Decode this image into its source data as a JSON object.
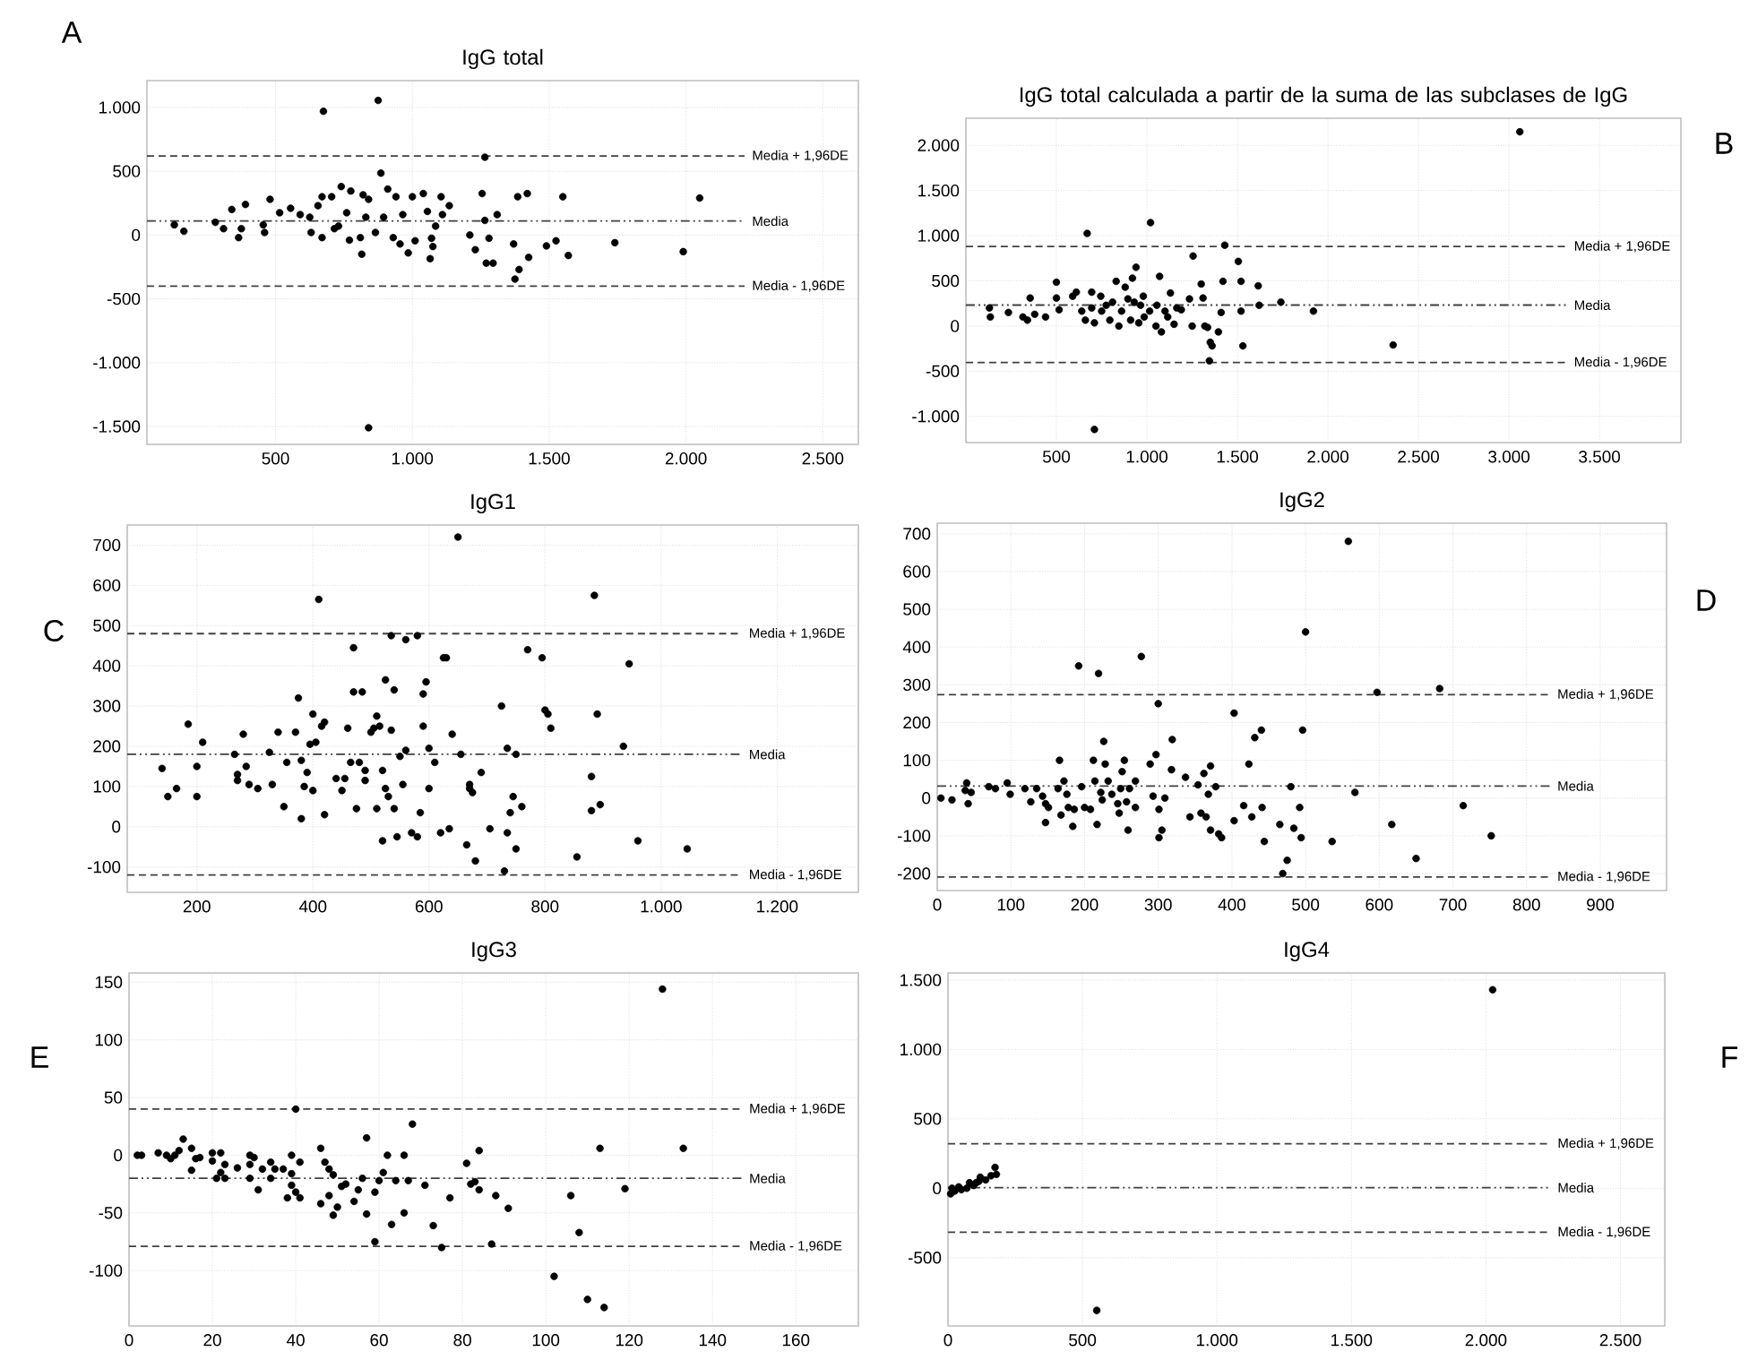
{
  "chart_data": [
    {
      "type": "scatter",
      "title": "IgG total",
      "annotations": [
        "A"
      ],
      "color": "#000000",
      "marker": "circle",
      "grid": true,
      "xlim": [
        30,
        2630
      ],
      "ylim": [
        -1640,
        1210
      ],
      "xticks": [
        500,
        {
          "value": 1000,
          "label": "1.000"
        },
        {
          "value": 1500,
          "label": "1.500"
        },
        {
          "value": 2000,
          "label": "2.000"
        },
        {
          "value": 2500,
          "label": "2.500"
        }
      ],
      "yticks": [
        {
          "value": -1500,
          "label": "-1.500"
        },
        {
          "value": -1000,
          "label": "-1.000"
        },
        -500,
        0,
        500,
        {
          "value": 1000,
          "label": "1.000"
        }
      ],
      "ref_lines": [
        {
          "axis": "y",
          "value": 620,
          "label": "Media + 1,96DE",
          "line_style": "dashed"
        },
        {
          "axis": "y",
          "value": 110,
          "label": "Media",
          "line_style": "dashdot"
        },
        {
          "axis": "y",
          "value": -400,
          "label": "Media - 1,96DE",
          "line_style": "dashed"
        }
      ],
      "x": [
        130,
        165,
        280,
        310,
        340,
        365,
        375,
        390,
        455,
        460,
        480,
        515,
        555,
        590,
        625,
        630,
        655,
        670,
        675,
        670,
        705,
        715,
        730,
        740,
        760,
        770,
        775,
        810,
        820,
        830,
        840,
        865,
        875,
        885,
        895,
        910,
        930,
        940,
        955,
        965,
        985,
        1000,
        1010,
        1040,
        1055,
        1065,
        1070,
        1075,
        1085,
        1105,
        1110,
        1135,
        1210,
        1230,
        1255,
        1265,
        1270,
        1280,
        1295,
        1310,
        1370,
        1375,
        1385,
        1390,
        1420,
        1425,
        1490,
        1525,
        1550,
        1570,
        1740,
        1990,
        2050,
        840,
        815,
        1265
      ],
      "values": [
        80,
        30,
        100,
        50,
        200,
        -20,
        50,
        240,
        80,
        20,
        280,
        175,
        210,
        160,
        140,
        20,
        230,
        300,
        970,
        -20,
        300,
        50,
        70,
        380,
        175,
        -40,
        345,
        -20,
        315,
        140,
        280,
        20,
        1055,
        485,
        140,
        360,
        -20,
        300,
        -70,
        160,
        -140,
        300,
        -45,
        325,
        185,
        -185,
        -25,
        -90,
        70,
        300,
        160,
        230,
        0,
        -115,
        325,
        115,
        -220,
        -25,
        -220,
        160,
        -70,
        -345,
        300,
        -270,
        325,
        -175,
        -85,
        -45,
        300,
        -160,
        -60,
        -130,
        290,
        -1510,
        -150,
        610
      ]
    },
    {
      "type": "scatter",
      "title": "IgG total calculada a partir de la suma de las subclases de IgG",
      "annotations": [
        "B"
      ],
      "color": "#000000",
      "marker": "circle",
      "grid": true,
      "xlim": [
        0,
        3950
      ],
      "ylim": [
        -1290,
        2300
      ],
      "xticks": [
        500,
        {
          "value": 1000,
          "label": "1.000"
        },
        {
          "value": 1500,
          "label": "1.500"
        },
        {
          "value": 2000,
          "label": "2.000"
        },
        {
          "value": 2500,
          "label": "2.500"
        },
        {
          "value": 3000,
          "label": "3.000"
        },
        {
          "value": 3500,
          "label": "3.500"
        }
      ],
      "yticks": [
        {
          "value": -1000,
          "label": "-1.000"
        },
        -500,
        0,
        500,
        {
          "value": 1000,
          "label": "1.000"
        },
        {
          "value": 1500,
          "label": "1.500"
        },
        {
          "value": 2000,
          "label": "2.000"
        }
      ],
      "ref_lines": [
        {
          "axis": "y",
          "value": 880,
          "label": "Media + 1,96DE",
          "line_style": "dashed"
        },
        {
          "axis": "y",
          "value": 232,
          "label": "Media",
          "line_style": "dashdot"
        },
        {
          "axis": "y",
          "value": -404,
          "label": "Media - 1,96DE",
          "line_style": "dashed"
        }
      ],
      "x": [
        130,
        135,
        235,
        315,
        340,
        355,
        380,
        440,
        500,
        500,
        515,
        590,
        610,
        640,
        660,
        670,
        695,
        695,
        710,
        745,
        750,
        775,
        795,
        810,
        830,
        845,
        860,
        880,
        895,
        910,
        920,
        930,
        940,
        955,
        965,
        980,
        985,
        1015,
        1020,
        1050,
        1055,
        1070,
        1080,
        1100,
        1115,
        1130,
        1150,
        1165,
        1190,
        1235,
        1250,
        1255,
        1300,
        1310,
        1320,
        1335,
        1345,
        1350,
        1360,
        1395,
        1410,
        1420,
        1430,
        1505,
        1520,
        1520,
        1530,
        1615,
        1620,
        1740,
        1920,
        2360,
        3060,
        710
      ],
      "values": [
        200,
        100,
        150,
        100,
        65,
        310,
        130,
        100,
        485,
        310,
        180,
        330,
        375,
        165,
        65,
        1025,
        375,
        200,
        35,
        330,
        165,
        230,
        65,
        265,
        495,
        0,
        165,
        430,
        300,
        65,
        530,
        265,
        650,
        35,
        230,
        330,
        100,
        165,
        1145,
        0,
        230,
        550,
        -65,
        165,
        100,
        365,
        20,
        200,
        180,
        300,
        0,
        775,
        465,
        310,
        0,
        -15,
        -385,
        -180,
        -220,
        -65,
        150,
        495,
        895,
        715,
        495,
        165,
        -220,
        445,
        230,
        265,
        165,
        -210,
        2150,
        -1145
      ]
    },
    {
      "type": "scatter",
      "title": "IgG1",
      "annotations": [
        "C"
      ],
      "color": "#000000",
      "marker": "circle",
      "grid": true,
      "xlim": [
        80,
        1340
      ],
      "ylim": [
        -163,
        750
      ],
      "xticks": [
        200,
        400,
        600,
        800,
        {
          "value": 1000,
          "label": "1.000"
        },
        {
          "value": 1200,
          "label": "1.200"
        }
      ],
      "yticks": [
        -100,
        0,
        100,
        200,
        300,
        400,
        500,
        600,
        700
      ],
      "ref_lines": [
        {
          "axis": "y",
          "value": 480,
          "label": "Media + 1,96DE",
          "line_style": "dashed"
        },
        {
          "axis": "y",
          "value": 180,
          "label": "Media",
          "line_style": "dashdot"
        },
        {
          "axis": "y",
          "value": -120,
          "label": "Media - 1,96DE",
          "line_style": "dashed"
        }
      ],
      "x": [
        140,
        150,
        165,
        185,
        200,
        200,
        210,
        265,
        270,
        270,
        280,
        285,
        290,
        305,
        325,
        330,
        340,
        350,
        355,
        370,
        375,
        380,
        380,
        385,
        390,
        395,
        400,
        400,
        405,
        410,
        415,
        420,
        420,
        440,
        450,
        455,
        460,
        465,
        470,
        470,
        475,
        480,
        485,
        490,
        490,
        500,
        505,
        510,
        510,
        515,
        520,
        520,
        525,
        525,
        530,
        535,
        535,
        540,
        540,
        545,
        550,
        555,
        560,
        560,
        570,
        580,
        580,
        585,
        590,
        590,
        595,
        600,
        600,
        610,
        620,
        625,
        630,
        635,
        640,
        650,
        655,
        665,
        670,
        670,
        675,
        680,
        690,
        705,
        725,
        730,
        735,
        735,
        740,
        745,
        750,
        750,
        760,
        770,
        795,
        800,
        805,
        810,
        855,
        880,
        880,
        885,
        890,
        895,
        935,
        945,
        960,
        1045
      ],
      "values": [
        145,
        75,
        95,
        255,
        75,
        150,
        210,
        180,
        130,
        115,
        230,
        150,
        105,
        95,
        185,
        105,
        235,
        50,
        160,
        235,
        320,
        20,
        165,
        100,
        135,
        205,
        90,
        280,
        210,
        565,
        250,
        260,
        30,
        120,
        90,
        120,
        245,
        160,
        335,
        445,
        45,
        160,
        335,
        140,
        115,
        235,
        245,
        45,
        275,
        250,
        140,
        -35,
        95,
        365,
        75,
        475,
        240,
        340,
        45,
        -25,
        175,
        105,
        190,
        465,
        -15,
        -25,
        475,
        35,
        330,
        250,
        360,
        195,
        95,
        160,
        -15,
        420,
        420,
        -5,
        230,
        720,
        180,
        -45,
        95,
        105,
        85,
        -85,
        135,
        -5,
        300,
        -110,
        195,
        -15,
        35,
        75,
        180,
        -55,
        50,
        440,
        420,
        290,
        280,
        245,
        -75,
        125,
        40,
        575,
        280,
        55,
        200,
        405,
        -35,
        -55
      ]
    },
    {
      "type": "scatter",
      "title": "IgG2",
      "annotations": [
        "D"
      ],
      "color": "#000000",
      "marker": "circle",
      "grid": true,
      "xlim": [
        0,
        990
      ],
      "ylim": [
        -245,
        728
      ],
      "xticks": [
        0,
        100,
        200,
        300,
        400,
        500,
        600,
        700,
        800,
        900
      ],
      "yticks": [
        -200,
        -100,
        0,
        100,
        200,
        300,
        400,
        500,
        600,
        700
      ],
      "ref_lines": [
        {
          "axis": "y",
          "value": 274,
          "label": "Media + 1,96DE",
          "line_style": "dashed"
        },
        {
          "axis": "y",
          "value": 32,
          "label": "Media",
          "line_style": "dashdot"
        },
        {
          "axis": "y",
          "value": -209,
          "label": "Media - 1,96DE",
          "line_style": "dashed"
        }
      ],
      "x": [
        5,
        20,
        38,
        40,
        42,
        46,
        70,
        79,
        95,
        99,
        119,
        127,
        135,
        143,
        147,
        151,
        147,
        164,
        166,
        168,
        172,
        176,
        178,
        184,
        186,
        192,
        196,
        200,
        208,
        212,
        214,
        217,
        219,
        222,
        224,
        226,
        228,
        232,
        237,
        245,
        247,
        249,
        251,
        254,
        257,
        259,
        261,
        269,
        269,
        277,
        289,
        293,
        297,
        300,
        301,
        301,
        305,
        309,
        318,
        319,
        337,
        343,
        354,
        358,
        362,
        365,
        368,
        371,
        371,
        378,
        382,
        386,
        403,
        403,
        416,
        423,
        427,
        431,
        440,
        441,
        444,
        465,
        469,
        475,
        480,
        484,
        492,
        494,
        496,
        500,
        536,
        558,
        567,
        597,
        617,
        650,
        682,
        714,
        752
      ],
      "values": [
        0,
        -5,
        20,
        40,
        -15,
        15,
        30,
        25,
        40,
        10,
        25,
        -10,
        25,
        5,
        -15,
        -25,
        -65,
        25,
        100,
        -45,
        45,
        10,
        -25,
        -75,
        -30,
        350,
        30,
        -25,
        -30,
        100,
        45,
        -70,
        330,
        15,
        -5,
        150,
        90,
        45,
        10,
        -15,
        -40,
        25,
        70,
        100,
        -10,
        -85,
        25,
        45,
        -25,
        375,
        90,
        5,
        115,
        250,
        -30,
        -105,
        -85,
        0,
        75,
        155,
        55,
        -50,
        35,
        -40,
        65,
        -50,
        10,
        85,
        -85,
        30,
        -95,
        -105,
        -60,
        225,
        -20,
        90,
        -50,
        160,
        180,
        -25,
        -115,
        -70,
        -200,
        -165,
        30,
        -80,
        -25,
        -105,
        180,
        440,
        -115,
        680,
        15,
        280,
        -70,
        -160,
        290,
        -20,
        -100
      ]
    },
    {
      "type": "scatter",
      "title": "IgG3",
      "annotations": [
        "E"
      ],
      "color": "#000000",
      "marker": "circle",
      "grid": true,
      "xlim": [
        0,
        175
      ],
      "ylim": [
        -148,
        158
      ],
      "xticks": [
        0,
        20,
        40,
        60,
        80,
        100,
        120,
        140,
        160
      ],
      "yticks": [
        -100,
        -50,
        0,
        50,
        100,
        150
      ],
      "ref_lines": [
        {
          "axis": "y",
          "value": 40,
          "label": "Media + 1,96DE",
          "line_style": "dashed"
        },
        {
          "axis": "y",
          "value": -20,
          "label": "Media",
          "line_style": "dashdot"
        },
        {
          "axis": "y",
          "value": -79,
          "label": "Media - 1,96DE",
          "line_style": "dashed"
        }
      ],
      "x": [
        2,
        3,
        7,
        9,
        10,
        11,
        12,
        13,
        15,
        15,
        16,
        17,
        20,
        20,
        21,
        22,
        22,
        23,
        23,
        26,
        29,
        29,
        29,
        30,
        31,
        32,
        34,
        34,
        35,
        37,
        38,
        39,
        39,
        39,
        40,
        40,
        41,
        41,
        46,
        46,
        47,
        48,
        48,
        49,
        49,
        50,
        51,
        52,
        54,
        55,
        56,
        57,
        57,
        59,
        59,
        60,
        61,
        62,
        63,
        64,
        66,
        66,
        67,
        68,
        71,
        73,
        75,
        77,
        81,
        82,
        83,
        84,
        84,
        87,
        88,
        91,
        102,
        106,
        108,
        110,
        113,
        114,
        119,
        128,
        133
      ],
      "values": [
        0,
        0,
        2,
        0,
        -3,
        0,
        4,
        14,
        6,
        -13,
        -3,
        -2,
        -5,
        2,
        -20,
        -15,
        2,
        -20,
        -8,
        -11,
        0,
        -8,
        -20,
        -2,
        -30,
        -12,
        -20,
        -6,
        -12,
        -12,
        -37,
        0,
        -16,
        -26,
        -32,
        40,
        -37,
        -6,
        -42,
        6,
        -6,
        -35,
        -12,
        -17,
        -52,
        -45,
        -27,
        -25,
        -40,
        -30,
        -20,
        -51,
        15,
        -32,
        -75,
        -22,
        -15,
        0,
        -60,
        -22,
        -50,
        0,
        -22,
        27,
        -26,
        -61,
        -80,
        -37,
        -7,
        -25,
        -23,
        4,
        -30,
        -77,
        -35,
        -46,
        -105,
        -35,
        -67,
        -125,
        6,
        -132,
        -29,
        144,
        6
      ]
    },
    {
      "type": "scatter",
      "title": "IgG4",
      "annotations": [
        "F"
      ],
      "color": "#000000",
      "marker": "circle",
      "grid": true,
      "xlim": [
        0,
        2665
      ],
      "ylim": [
        -992,
        1551
      ],
      "xticks": [
        0,
        500,
        {
          "value": 1000,
          "label": "1.000"
        },
        {
          "value": 1500,
          "label": "1.500"
        },
        {
          "value": 2000,
          "label": "2.000"
        },
        {
          "value": 2500,
          "label": "2.500"
        }
      ],
      "yticks": [
        -500,
        0,
        500,
        {
          "value": 1000,
          "label": "1.000"
        },
        {
          "value": 1500,
          "label": "1.500"
        }
      ],
      "ref_lines": [
        {
          "axis": "y",
          "value": 321,
          "label": "Media + 1,96DE",
          "line_style": "dashed"
        },
        {
          "axis": "y",
          "value": 5,
          "label": "Media",
          "line_style": "dashdot"
        },
        {
          "axis": "y",
          "value": -317,
          "label": "Media - 1,96DE",
          "line_style": "dashed"
        }
      ],
      "x": [
        10,
        15,
        25,
        40,
        50,
        70,
        80,
        95,
        105,
        115,
        120,
        140,
        160,
        180,
        175,
        2025,
        553
      ],
      "values": [
        -40,
        0,
        -20,
        10,
        -10,
        0,
        40,
        20,
        40,
        50,
        80,
        60,
        90,
        100,
        150,
        1430,
        -880
      ]
    }
  ]
}
